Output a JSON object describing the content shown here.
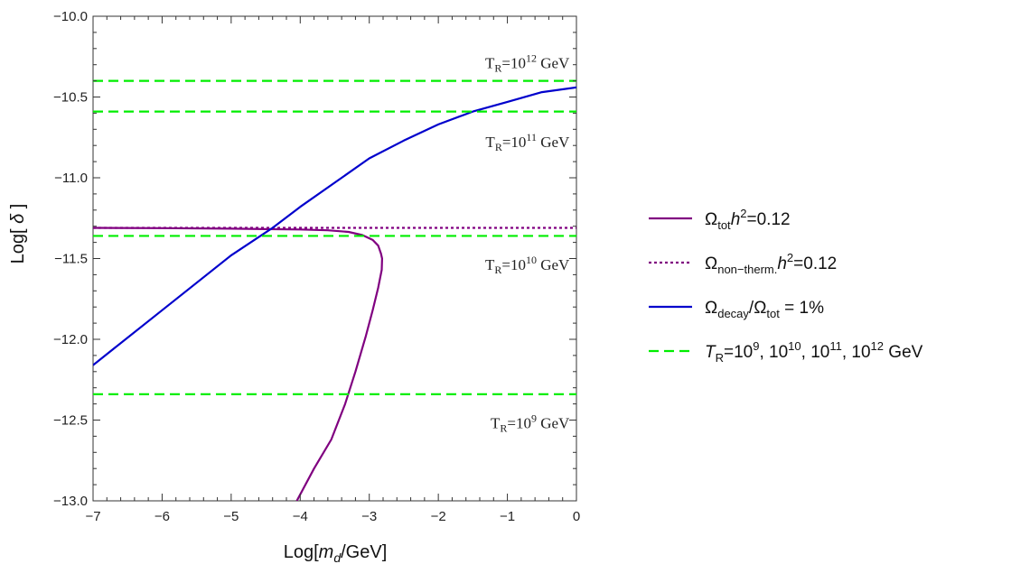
{
  "chart_data": {
    "type": "line",
    "xlabel_prefix": "Log[",
    "xlabel_var": "m",
    "xlabel_sub": "d",
    "xlabel_suffix": "/GeV]",
    "ylabel_prefix": "Log[ ",
    "ylabel_var": "δ",
    "ylabel_suffix": " ]",
    "xlim": [
      -7,
      0
    ],
    "ylim": [
      -13.0,
      -10.0
    ],
    "x_ticks": [
      -7,
      -6,
      -5,
      -4,
      -3,
      -2,
      -1,
      0
    ],
    "x_tick_labels": [
      "−7",
      "−6",
      "−5",
      "−4",
      "−3",
      "−2",
      "−1",
      "0"
    ],
    "y_ticks": [
      -13.0,
      -12.5,
      -12.0,
      -11.5,
      -11.0,
      -10.5,
      -10.0
    ],
    "y_tick_labels": [
      "−13.0",
      "−12.5",
      "−12.0",
      "−11.5",
      "−11.0",
      "−10.5",
      "−10.0"
    ],
    "grid": false,
    "legend_position": "right",
    "series": [
      {
        "name": "Ω_tot h^2=0.12",
        "color": "#800080",
        "style": "solid",
        "points": [
          [
            -7,
            -11.31
          ],
          [
            -6,
            -11.312
          ],
          [
            -5,
            -11.315
          ],
          [
            -4.5,
            -11.318
          ],
          [
            -4,
            -11.32
          ],
          [
            -3.6,
            -11.325
          ],
          [
            -3.3,
            -11.335
          ],
          [
            -3.1,
            -11.355
          ],
          [
            -2.95,
            -11.385
          ],
          [
            -2.87,
            -11.42
          ],
          [
            -2.83,
            -11.47
          ],
          [
            -2.815,
            -11.5
          ],
          [
            -2.82,
            -11.57
          ],
          [
            -2.87,
            -11.68
          ],
          [
            -2.95,
            -11.82
          ],
          [
            -3.05,
            -11.98
          ],
          [
            -3.2,
            -12.2
          ],
          [
            -3.35,
            -12.4
          ],
          [
            -3.55,
            -12.62
          ],
          [
            -3.8,
            -12.8
          ],
          [
            -4.05,
            -13.0
          ]
        ]
      },
      {
        "name": "Ω_non-therm. h^2=0.12",
        "color": "#800080",
        "style": "dotted",
        "points": [
          [
            -7,
            -11.31
          ],
          [
            0,
            -11.31
          ]
        ]
      },
      {
        "name": "Ω_decay/Ω_tot = 1%",
        "color": "#0000cc",
        "style": "solid",
        "points": [
          [
            -7,
            -12.16
          ],
          [
            -6,
            -11.82
          ],
          [
            -5,
            -11.48
          ],
          [
            -4.4,
            -11.31
          ],
          [
            -4,
            -11.18
          ],
          [
            -3.5,
            -11.03
          ],
          [
            -3,
            -10.88
          ],
          [
            -2.5,
            -10.77
          ],
          [
            -2,
            -10.67
          ],
          [
            -1.5,
            -10.59
          ],
          [
            -1,
            -10.53
          ],
          [
            -0.5,
            -10.47
          ],
          [
            0,
            -10.44
          ]
        ]
      },
      {
        "name": "T_R=10^9, 10^10, 10^11, 10^12 GeV",
        "color": "#00ee00",
        "style": "dashed",
        "hlines": [
          -12.34,
          -11.36,
          -10.59,
          -10.4
        ]
      }
    ],
    "annotations": [
      {
        "base": "T",
        "sub": "R",
        "mid": "=10",
        "sup": "12",
        "unit": " GeV",
        "at": [
          -0.1,
          -10.32
        ],
        "anchor": "end"
      },
      {
        "base": "T",
        "sub": "R",
        "mid": "=10",
        "sup": "11",
        "unit": " GeV",
        "at": [
          -0.1,
          -10.81
        ],
        "anchor": "end"
      },
      {
        "base": "T",
        "sub": "R",
        "mid": "=10",
        "sup": "10",
        "unit": " GeV",
        "at": [
          -0.1,
          -11.57
        ],
        "anchor": "end"
      },
      {
        "base": "T",
        "sub": "R",
        "mid": "=10",
        "sup": "9",
        "unit": " GeV",
        "at": [
          -0.1,
          -12.55
        ],
        "anchor": "end"
      }
    ],
    "legend": [
      {
        "style": "solid",
        "color": "#800080",
        "parts": [
          [
            "Ω",
            "n"
          ],
          [
            "tot",
            "sub"
          ],
          [
            "h",
            "i"
          ],
          [
            "2",
            "sup"
          ],
          [
            "=0.12",
            "n"
          ]
        ]
      },
      {
        "style": "dotted",
        "color": "#800080",
        "parts": [
          [
            "Ω",
            "n"
          ],
          [
            "non−therm.",
            "sub"
          ],
          [
            "h",
            "i"
          ],
          [
            "2",
            "sup"
          ],
          [
            "=0.12",
            "n"
          ]
        ]
      },
      {
        "style": "solid",
        "color": "#0000cc",
        "parts": [
          [
            "Ω",
            "n"
          ],
          [
            "decay",
            "sub"
          ],
          [
            "/Ω",
            "n"
          ],
          [
            "tot",
            "sub"
          ],
          [
            " = 1%",
            "n"
          ]
        ]
      },
      {
        "style": "dashed",
        "color": "#00ee00",
        "parts": [
          [
            "T",
            "i"
          ],
          [
            "R",
            "sub"
          ],
          [
            "=10",
            "n"
          ],
          [
            "9",
            "sup"
          ],
          [
            ", 10",
            "n"
          ],
          [
            "10",
            "sup"
          ],
          [
            ", 10",
            "n"
          ],
          [
            "11",
            "sup"
          ],
          [
            ", 10",
            "n"
          ],
          [
            "12",
            "sup"
          ],
          [
            " GeV",
            "n"
          ]
        ]
      }
    ]
  }
}
